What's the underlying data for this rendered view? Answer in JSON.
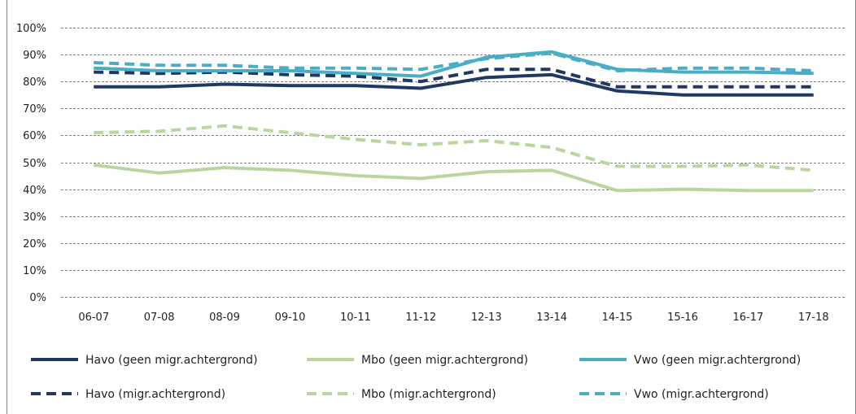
{
  "chart_data": {
    "type": "line",
    "title": "",
    "xlabel": "",
    "ylabel": "",
    "ylim": [
      0,
      100
    ],
    "y_ticks": [
      "0%",
      "10%",
      "20%",
      "30%",
      "40%",
      "50%",
      "60%",
      "70%",
      "80%",
      "90%",
      "100%"
    ],
    "categories": [
      "06-07",
      "07-08",
      "08-09",
      "09-10",
      "10-11",
      "11-12",
      "12-13",
      "13-14",
      "14-15",
      "15-16",
      "16-17",
      "17-18"
    ],
    "grid": true,
    "legend_position": "bottom",
    "series": [
      {
        "name": "Havo (geen migr.achtergrond)",
        "color": "#1F3864",
        "dash": "solid",
        "values": [
          78,
          78,
          79,
          78.5,
          78.5,
          77.5,
          81.5,
          82.5,
          76.5,
          75,
          75,
          75
        ]
      },
      {
        "name": "Mbo (geen migr.achtergrond)",
        "color": "#B9D6A1",
        "dash": "solid",
        "values": [
          49,
          46,
          48,
          47,
          45,
          44,
          46.5,
          47,
          39.5,
          40,
          39.5,
          39.5
        ]
      },
      {
        "name": "Vwo (geen migr.achtergrond)",
        "color": "#4BACC6",
        "dash": "solid",
        "values": [
          85,
          84,
          84,
          84,
          83,
          82,
          89,
          91,
          84.5,
          83.5,
          83.5,
          83
        ]
      },
      {
        "name": "Havo (migr.achtergrond)",
        "color": "#1F3864",
        "dash": "dashed",
        "values": [
          83.5,
          83,
          83.5,
          82.5,
          82,
          80,
          84.5,
          84.5,
          78,
          78,
          78,
          78
        ]
      },
      {
        "name": "Mbo (migr.achtergrond)",
        "color": "#B9D6A1",
        "dash": "dashed",
        "values": [
          61,
          61.5,
          63.5,
          61,
          58.5,
          56.5,
          58,
          55.5,
          48.5,
          48.5,
          49,
          47
        ]
      },
      {
        "name": "Vwo (migr.achtergrond)",
        "color": "#4BACC6",
        "dash": "dashed",
        "values": [
          87,
          86,
          86,
          85,
          85,
          84.5,
          88.5,
          90.5,
          84,
          85,
          85,
          84
        ]
      }
    ]
  }
}
